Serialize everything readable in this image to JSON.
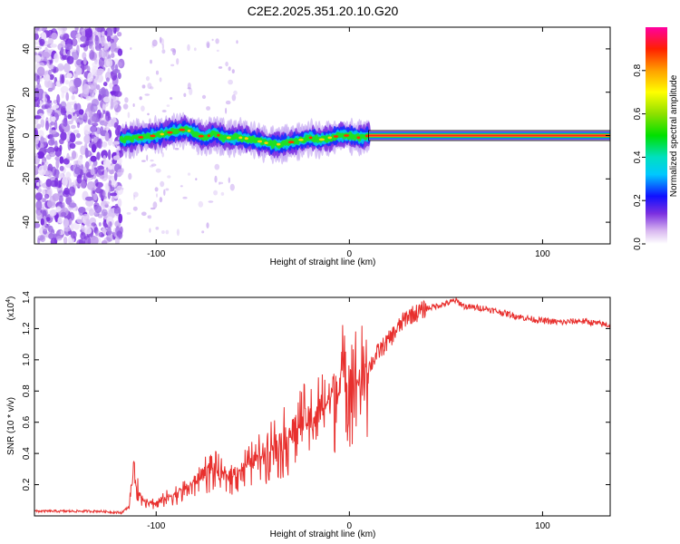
{
  "title": "C2E2.2025.351.20.10.G20",
  "chart_data": [
    {
      "type": "heatmap",
      "name": "spectrogram",
      "xlabel": "Height of straight line (km)",
      "ylabel": "Frequency (Hz)",
      "xlim": [
        -163,
        135
      ],
      "ylim": [
        -50,
        50
      ],
      "xticks": [
        -100,
        0,
        100
      ],
      "xtick_labels": [
        "-100",
        "0",
        "100"
      ],
      "yticks": [
        -40,
        -20,
        0,
        20,
        40
      ],
      "ytick_labels": [
        "-40",
        "-20",
        "0",
        "20",
        "40"
      ],
      "noise_region_x": [
        -163,
        -118
      ],
      "coherent_start_x": -118,
      "clean_start_x": 10,
      "ridge": {
        "x": [
          -118,
          -110,
          -100,
          -90,
          -85,
          -80,
          -75,
          -70,
          -65,
          -60,
          -55,
          -50,
          -45,
          -40,
          -35,
          -30,
          -25,
          -20,
          -15,
          -10,
          -5,
          0,
          5,
          10,
          135
        ],
        "y": [
          -2,
          -1,
          0,
          2,
          3,
          1,
          -1,
          1,
          -1,
          -1,
          -1,
          -2,
          -3,
          -4,
          -4,
          -3,
          -2,
          -1,
          -2,
          -1,
          0,
          0,
          -1,
          0,
          0
        ]
      },
      "colorbar": {
        "label": "Normalized spectral amplitude",
        "range": [
          0,
          1
        ],
        "ticks": [
          0.0,
          0.2,
          0.4,
          0.6,
          0.8
        ],
        "tick_labels": [
          "0.0",
          "0.2",
          "0.4",
          "0.6",
          "0.8"
        ]
      }
    },
    {
      "type": "line",
      "name": "snr",
      "xlabel": "Height of straight line (km)",
      "ylabel": "SNR (10 * v/v)",
      "scale_label": "(x10",
      "scale_exponent": "4",
      "xlim": [
        -163,
        135
      ],
      "ylim": [
        0,
        1.4
      ],
      "xticks": [
        -100,
        0,
        100
      ],
      "xtick_labels": [
        "-100",
        "0",
        "100"
      ],
      "yticks": [
        0.2,
        0.4,
        0.6,
        0.8,
        1.0,
        1.2,
        1.4
      ],
      "ytick_labels": [
        "0.2",
        "0.4",
        "0.6",
        "0.8",
        "1.0",
        "1.2",
        "1.4"
      ],
      "color": "#e8302e",
      "series": [
        {
          "name": "SNR",
          "x": [
            -163,
            -150,
            -130,
            -118,
            -114,
            -112,
            -108,
            -100,
            -95,
            -90,
            -85,
            -80,
            -75,
            -70,
            -65,
            -60,
            -55,
            -50,
            -45,
            -40,
            -35,
            -30,
            -25,
            -20,
            -15,
            -10,
            -5,
            0,
            5,
            10,
            15,
            20,
            25,
            30,
            35,
            40,
            50,
            55,
            60,
            70,
            80,
            90,
            100,
            110,
            120,
            130,
            135
          ],
          "y": [
            0.03,
            0.03,
            0.03,
            0.02,
            0.06,
            0.28,
            0.12,
            0.08,
            0.12,
            0.15,
            0.18,
            0.22,
            0.3,
            0.32,
            0.26,
            0.28,
            0.32,
            0.36,
            0.42,
            0.48,
            0.5,
            0.56,
            0.62,
            0.64,
            0.7,
            0.78,
            0.92,
            0.96,
            0.9,
            0.95,
            1.05,
            1.12,
            1.2,
            1.28,
            1.3,
            1.33,
            1.36,
            1.38,
            1.34,
            1.33,
            1.3,
            1.27,
            1.25,
            1.24,
            1.25,
            1.23,
            1.22
          ]
        }
      ]
    }
  ]
}
